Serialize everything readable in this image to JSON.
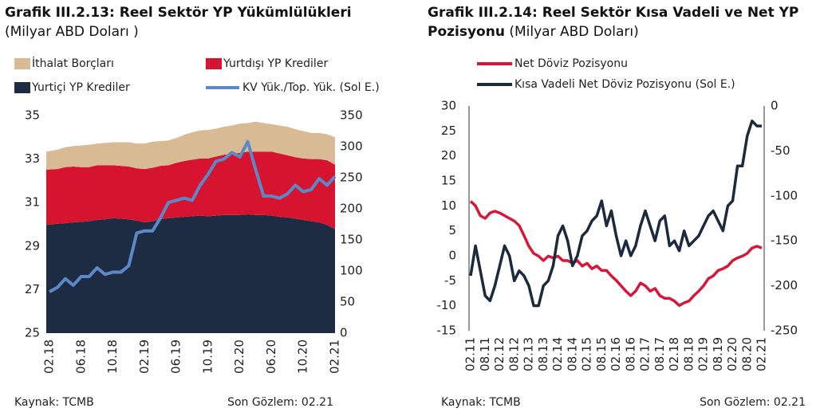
{
  "chart_data": [
    {
      "type": "area",
      "stacked": true,
      "title": "Grafik III.2.13: Reel Sektör YP Yükümlülükleri",
      "subtitle": "(Milyar ABD Doları )",
      "categories": [
        "02.18",
        null,
        null,
        null,
        "06.18",
        null,
        null,
        null,
        "10.18",
        null,
        null,
        null,
        "02.19",
        null,
        null,
        null,
        "06.19",
        null,
        null,
        null,
        "10.19",
        null,
        null,
        null,
        "02.20",
        null,
        null,
        null,
        "06.20",
        null,
        null,
        null,
        "10.20",
        null,
        null,
        null,
        "02.21"
      ],
      "series": [
        {
          "name": "İthalat Borçları",
          "type": "area",
          "axis": "y2",
          "color": "#d8bb94",
          "values": [
            29,
            31,
            32,
            33,
            35,
            36,
            35,
            36,
            37,
            38,
            39,
            40,
            41,
            42,
            40,
            40,
            40,
            42,
            44,
            45,
            46,
            45,
            45,
            46,
            47,
            46,
            48,
            46,
            44,
            45,
            46,
            45,
            44,
            42,
            42,
            42,
            44
          ]
        },
        {
          "name": "Yurtdışı YP Krediler",
          "type": "area",
          "axis": "y2",
          "color": "#d7142f",
          "values": [
            89,
            88,
            90,
            90,
            88,
            87,
            88,
            87,
            85,
            85,
            85,
            84,
            86,
            86,
            86,
            85,
            88,
            90,
            91,
            92,
            93,
            95,
            97,
            98,
            100,
            101,
            102,
            102,
            103,
            102,
            100,
            99,
            99,
            100,
            102,
            104,
            104
          ]
        },
        {
          "name": "Yurtiçi YP Krediler",
          "type": "area",
          "axis": "y2",
          "color": "#1e2c43",
          "values": [
            174,
            176,
            177,
            178,
            179,
            180,
            182,
            183,
            185,
            184,
            183,
            181,
            178,
            180,
            183,
            185,
            186,
            187,
            188,
            189,
            188,
            189,
            190,
            190,
            190,
            191,
            190,
            190,
            189,
            187,
            186,
            184,
            182,
            180,
            178,
            174,
            167
          ]
        },
        {
          "name": "KV Yük./Top. Yük. (Sol E.)",
          "type": "line",
          "color": "#5b88c6",
          "values": [
            26.9,
            27.1,
            27.5,
            27.2,
            27.6,
            27.6,
            28.0,
            27.7,
            27.8,
            27.8,
            28.1,
            29.6,
            29.7,
            29.7,
            30.3,
            31.0,
            31.1,
            31.2,
            31.1,
            31.8,
            32.3,
            32.9,
            33.0,
            33.3,
            33.1,
            33.8,
            32.5,
            31.3,
            31.3,
            31.2,
            31.4,
            31.8,
            31.5,
            31.6,
            32.1,
            31.8,
            32.2
          ]
        }
      ],
      "ylim": [
        25,
        35
      ],
      "yticks": [
        25,
        27,
        29,
        31,
        33,
        35
      ],
      "y2lim": [
        0,
        350
      ],
      "y2ticks": [
        0,
        50,
        100,
        150,
        200,
        250,
        300,
        350
      ],
      "source": "Kaynak: TCMB",
      "last_observation": "Son Gözlem: 02.21"
    },
    {
      "type": "line",
      "title": "Grafik III.2.14: Reel Sektör Kısa Vadeli ve Net YP Pozisyonu",
      "subtitle": "(Milyar ABD Doları)",
      "categories": [
        "02.11",
        null,
        null,
        "08.11",
        null,
        null,
        "02.12",
        null,
        null,
        "08.12",
        null,
        null,
        "02.13",
        null,
        null,
        "08.13",
        null,
        null,
        "02.14",
        null,
        null,
        "08.14",
        null,
        null,
        "02.15",
        null,
        null,
        "08.15",
        null,
        null,
        "02.16",
        null,
        null,
        "08.16",
        null,
        null,
        "02.17",
        null,
        null,
        "08.17",
        null,
        null,
        "02.18",
        null,
        null,
        "08.18",
        null,
        null,
        "02.19",
        null,
        null,
        "08.19",
        null,
        null,
        "02.20",
        null,
        null,
        "08.20",
        null,
        null,
        "02.21"
      ],
      "series": [
        {
          "name": "Net Döviz Pozisyonu",
          "axis": "y2",
          "color": "#d5173a",
          "values": [
            -106,
            -111,
            -122,
            -125,
            -119,
            -117,
            -119,
            -122,
            -125,
            -128,
            -133,
            -144,
            -156,
            -164,
            -167,
            -172,
            -167,
            -169,
            -167,
            -172,
            -172,
            -175,
            -172,
            -178,
            -175,
            -181,
            -178,
            -183,
            -183,
            -189,
            -194,
            -200,
            -206,
            -211,
            -206,
            -197,
            -200,
            -206,
            -203,
            -211,
            -214,
            -214,
            -217,
            -222,
            -219,
            -217,
            -211,
            -206,
            -200,
            -192,
            -189,
            -183,
            -181,
            -178,
            -172,
            -169,
            -167,
            -164,
            -158,
            -156,
            -158
          ]
        },
        {
          "name": "Kısa Vadeli Net Döviz Pozisyonu (Sol E.)",
          "color": "#1c2a3e",
          "values": [
            -4,
            2,
            -3,
            -8,
            -9,
            -6,
            -2,
            2,
            0,
            -5,
            -3,
            -4,
            -6,
            -10,
            -10,
            -6,
            -5,
            -2,
            4,
            6,
            3,
            -2,
            0,
            4,
            5,
            7,
            8,
            11,
            6,
            9,
            4,
            0,
            3,
            0,
            2,
            6,
            9,
            6,
            3,
            7,
            8,
            2,
            3,
            1,
            5,
            2,
            3,
            4,
            6,
            8,
            9,
            7,
            5,
            10,
            11,
            18,
            18,
            24,
            27,
            26,
            26
          ]
        }
      ],
      "ylim": [
        -15,
        30
      ],
      "yticks": [
        -15,
        -10,
        -5,
        0,
        5,
        10,
        15,
        20,
        25,
        30
      ],
      "y2lim": [
        -250,
        0
      ],
      "y2ticks": [
        -250,
        -200,
        -150,
        -100,
        -50,
        0
      ],
      "source": "Kaynak: TCMB",
      "last_observation": "Son Gözlem: 02.21"
    }
  ]
}
